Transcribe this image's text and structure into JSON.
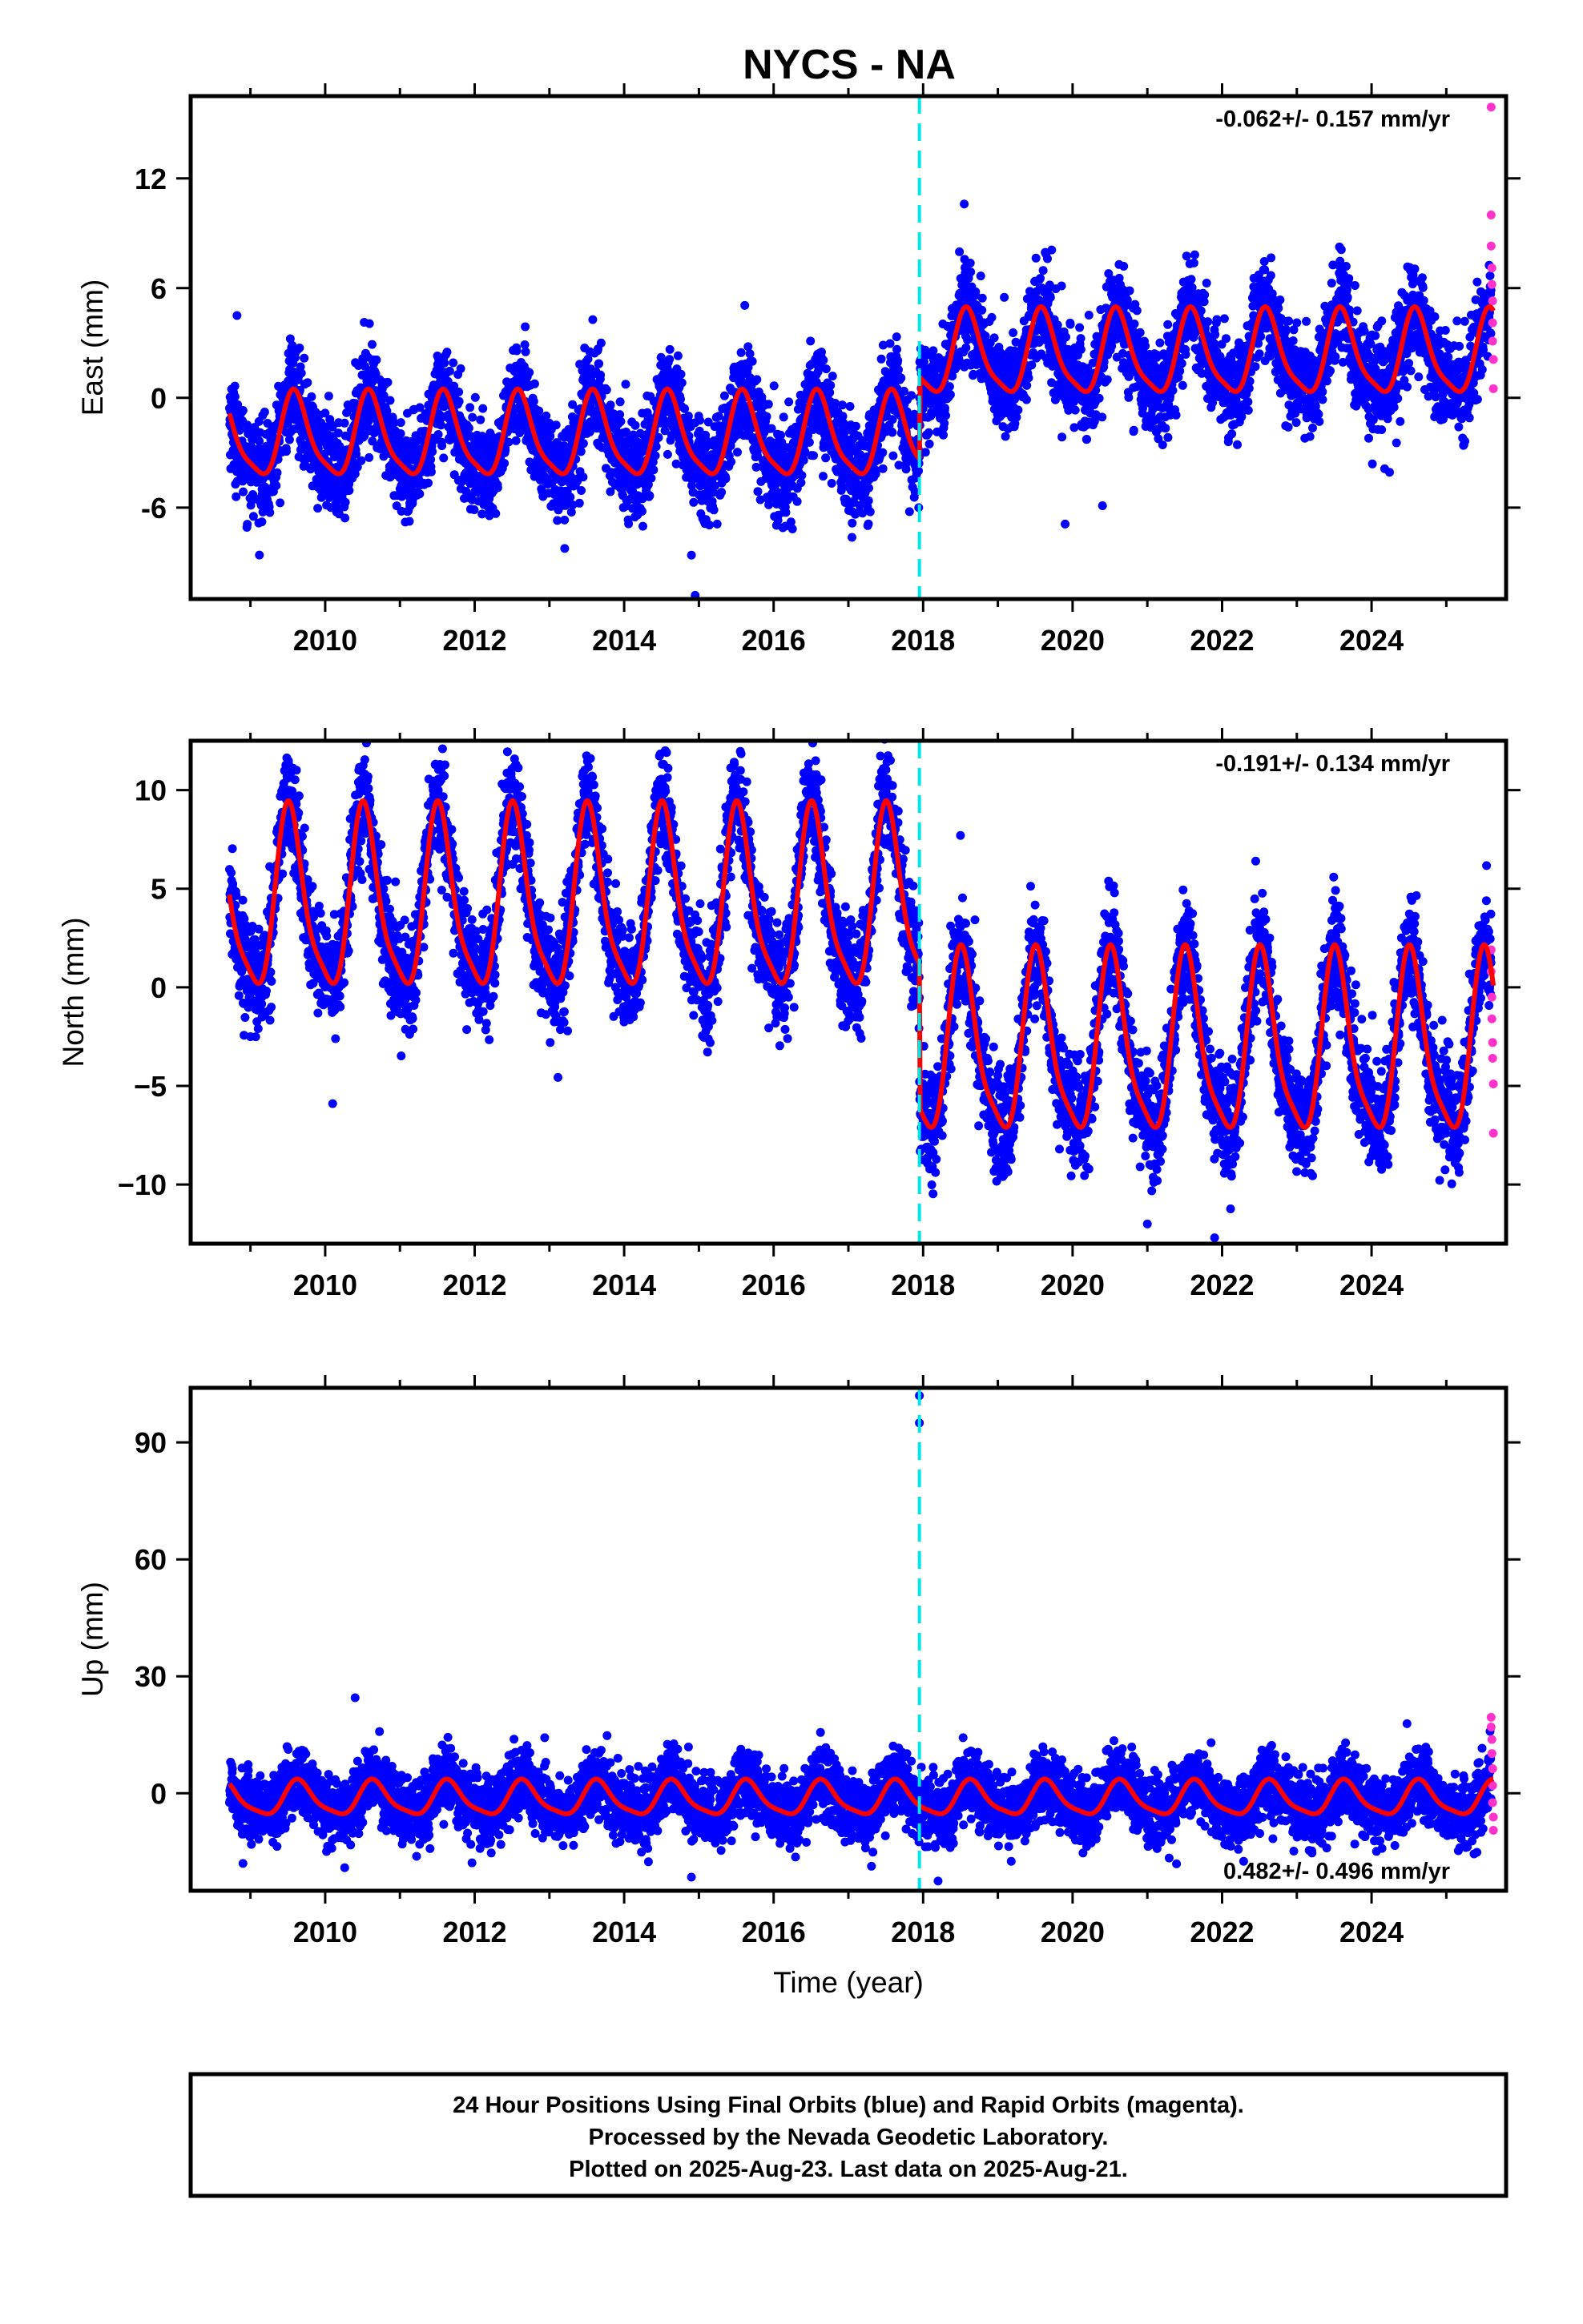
{
  "title": "NYCS - NA",
  "xlabel": "Time (year)",
  "colors": {
    "final_orbits": "#0000ff",
    "rapid_orbits": "#ff33cc",
    "model_fit": "#ff0000",
    "equipment_change": "#00e5e5"
  },
  "footer": {
    "line1": "24 Hour Positions Using Final Orbits (blue) and Rapid Orbits (magenta).",
    "line2": "Processed by the Nevada Geodetic Laboratory.",
    "line3": "Plotted on 2025-Aug-23. Last data on 2025-Aug-21."
  },
  "chart_data": [
    {
      "type": "scatter",
      "ylabel": "East (mm)",
      "rate_label": "-0.062+/- 0.157 mm/yr",
      "xlim": [
        2008.2,
        2025.8
      ],
      "ylim": [
        -11,
        16.5
      ],
      "x_ticks": [
        2010,
        2012,
        2014,
        2016,
        2018,
        2020,
        2022,
        2024
      ],
      "x_tick_labels": [
        "2010",
        "2012",
        "2014",
        "2016",
        "2018",
        "2020",
        "2022",
        "2024"
      ],
      "y_ticks": [
        -6,
        0,
        6,
        12
      ],
      "y_tick_labels": [
        "-6",
        "0",
        "6",
        "12"
      ],
      "equipment_change_year": 2017.95,
      "x_start": 2008.72,
      "x_end": 2025.63,
      "segments": [
        {
          "start": 2008.72,
          "end": 2017.95,
          "offset": -2.2,
          "amplitude": 2.6,
          "phase_peak": 0.6,
          "noise": 1.3
        },
        {
          "start": 2017.95,
          "end": 2025.63,
          "offset": 2.3,
          "amplitude": 2.6,
          "phase_peak": 0.6,
          "noise": 1.3
        }
      ],
      "rapid_points": [
        {
          "x": 2025.6,
          "y": 15.9
        },
        {
          "x": 2025.6,
          "y": 10.0
        },
        {
          "x": 2025.6,
          "y": 8.3
        },
        {
          "x": 2025.61,
          "y": 7.1
        },
        {
          "x": 2025.61,
          "y": 6.2
        },
        {
          "x": 2025.62,
          "y": 5.3
        },
        {
          "x": 2025.62,
          "y": 4.1
        },
        {
          "x": 2025.62,
          "y": 3.1
        },
        {
          "x": 2025.63,
          "y": 2.1
        },
        {
          "x": 2025.63,
          "y": 0.5
        }
      ],
      "outliers": [
        {
          "x": 2014.9,
          "y": -8.6
        },
        {
          "x": 2014.95,
          "y": -10.8
        },
        {
          "x": 2018.55,
          "y": 10.6
        },
        {
          "x": 2019.9,
          "y": -6.9
        },
        {
          "x": 2020.4,
          "y": -5.9
        },
        {
          "x": 2008.82,
          "y": 4.5
        }
      ]
    },
    {
      "type": "scatter",
      "ylabel": "North (mm)",
      "rate_label": "-0.191+/- 0.134 mm/yr",
      "xlim": [
        2008.2,
        2025.8
      ],
      "ylim": [
        -13,
        12.5
      ],
      "x_ticks": [
        2010,
        2012,
        2014,
        2016,
        2018,
        2020,
        2022,
        2024
      ],
      "x_tick_labels": [
        "2010",
        "2012",
        "2014",
        "2016",
        "2018",
        "2020",
        "2022",
        "2024"
      ],
      "y_ticks": [
        -10,
        -5,
        0,
        5,
        10
      ],
      "y_tick_labels": [
        "−10",
        "−5",
        "0",
        "5",
        "10"
      ],
      "equipment_change_year": 2017.95,
      "x_start": 2008.72,
      "x_end": 2025.63,
      "segments": [
        {
          "start": 2008.72,
          "end": 2017.95,
          "offset": 4.1,
          "amplitude": 5.2,
          "phase_peak": 0.53,
          "noise": 1.3
        },
        {
          "start": 2017.95,
          "end": 2025.63,
          "offset": -3.2,
          "amplitude": 5.2,
          "phase_peak": 0.53,
          "noise": 1.3
        }
      ],
      "rapid_points": [
        {
          "x": 2025.6,
          "y": 1.9
        },
        {
          "x": 2025.6,
          "y": 0.8
        },
        {
          "x": 2025.61,
          "y": -0.5
        },
        {
          "x": 2025.61,
          "y": -1.6
        },
        {
          "x": 2025.62,
          "y": -2.8
        },
        {
          "x": 2025.62,
          "y": -3.6
        },
        {
          "x": 2025.63,
          "y": -4.9
        },
        {
          "x": 2025.63,
          "y": -7.4
        }
      ],
      "outliers": [
        {
          "x": 2010.1,
          "y": -5.9
        },
        {
          "x": 2014.55,
          "y": 12.0
        },
        {
          "x": 2018.5,
          "y": 7.7
        },
        {
          "x": 2021.0,
          "y": -12.0
        },
        {
          "x": 2021.9,
          "y": -12.7
        },
        {
          "x": 2022.45,
          "y": 6.4
        }
      ]
    },
    {
      "type": "scatter",
      "ylabel": "Up (mm)",
      "rate_label": "0.482+/- 0.496 mm/yr",
      "xlim": [
        2008.2,
        2025.8
      ],
      "ylim": [
        -25,
        104
      ],
      "x_ticks": [
        2010,
        2012,
        2014,
        2016,
        2018,
        2020,
        2022,
        2024
      ],
      "x_tick_labels": [
        "2010",
        "2012",
        "2014",
        "2016",
        "2018",
        "2020",
        "2022",
        "2024"
      ],
      "y_ticks": [
        0,
        30,
        60,
        90
      ],
      "y_tick_labels": [
        "0",
        "30",
        "60",
        "90"
      ],
      "equipment_change_year": 2017.95,
      "x_start": 2008.72,
      "x_end": 2025.63,
      "segments": [
        {
          "start": 2008.72,
          "end": 2025.63,
          "offset": -1.5,
          "amplitude": 5.0,
          "phase_peak": 0.65,
          "noise": 4.2
        }
      ],
      "rapid_points": [
        {
          "x": 2025.6,
          "y": 19.5
        },
        {
          "x": 2025.6,
          "y": 17.0
        },
        {
          "x": 2025.61,
          "y": 13.8
        },
        {
          "x": 2025.61,
          "y": 10.2
        },
        {
          "x": 2025.62,
          "y": 6.3
        },
        {
          "x": 2025.62,
          "y": 2.0
        },
        {
          "x": 2025.62,
          "y": -2.4
        },
        {
          "x": 2025.63,
          "y": -6.1
        },
        {
          "x": 2025.63,
          "y": -9.5
        }
      ],
      "outliers": [
        {
          "x": 2017.95,
          "y": 102
        },
        {
          "x": 2017.95,
          "y": 95
        },
        {
          "x": 2010.4,
          "y": 24.5
        },
        {
          "x": 2014.9,
          "y": -21.5
        },
        {
          "x": 2018.2,
          "y": -22.5
        },
        {
          "x": 2008.9,
          "y": -18.0
        }
      ]
    }
  ]
}
